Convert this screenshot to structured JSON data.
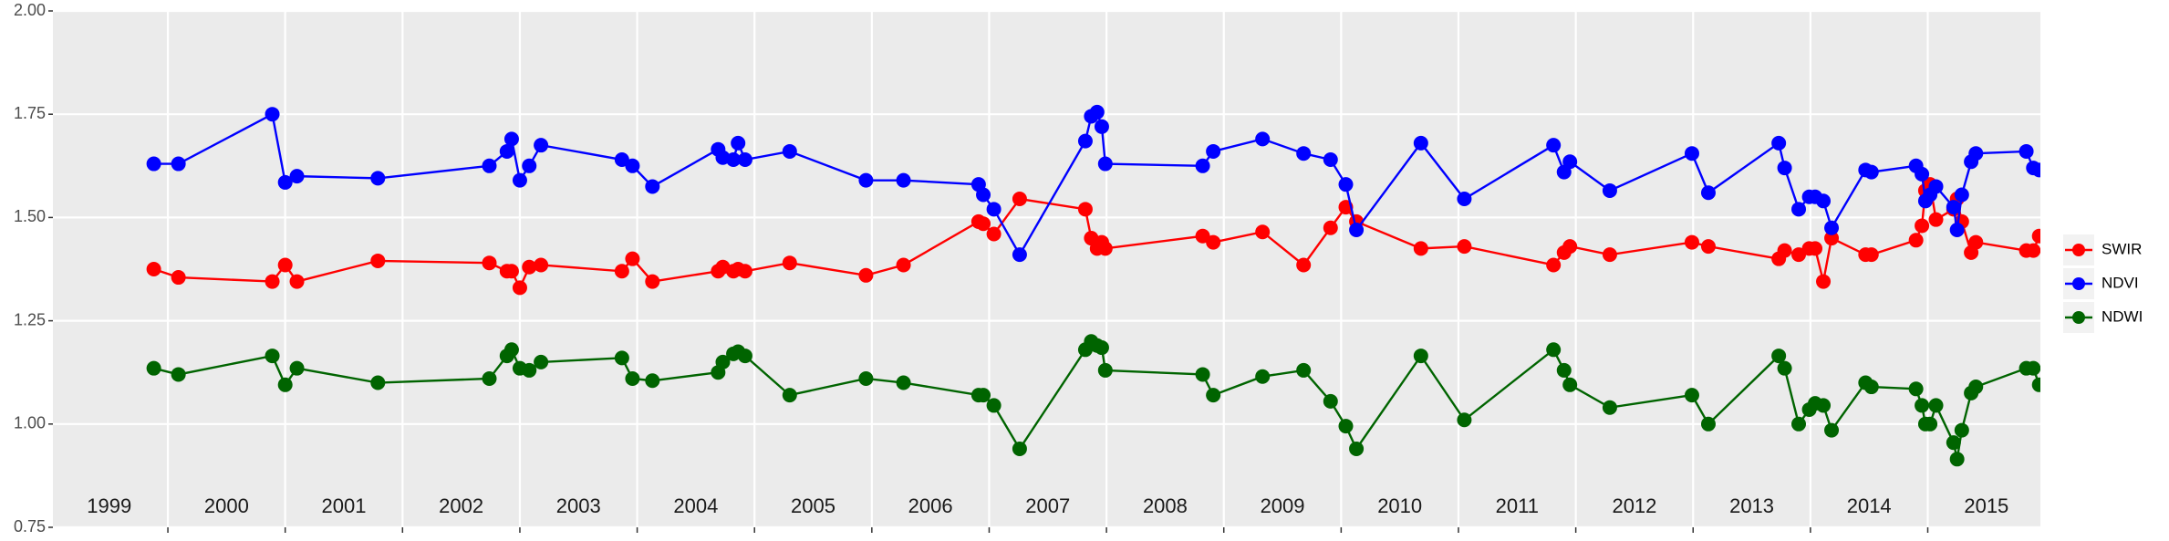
{
  "chart_data": {
    "type": "line",
    "x": [
      1999.88,
      2000.09,
      2000.89,
      2001.0,
      2001.1,
      2001.79,
      2002.74,
      2002.89,
      2002.93,
      2003.0,
      2003.08,
      2003.18,
      2003.87,
      2003.96,
      2004.13,
      2004.69,
      2004.73,
      2004.82,
      2004.86,
      2004.92,
      2005.3,
      2005.95,
      2006.27,
      2006.91,
      2006.95,
      2007.04,
      2007.26,
      2007.82,
      2007.87,
      2007.92,
      2007.96,
      2007.99,
      2008.82,
      2008.91,
      2009.33,
      2009.68,
      2009.91,
      2010.04,
      2010.13,
      2010.68,
      2011.05,
      2011.81,
      2011.9,
      2011.95,
      2012.29,
      2012.99,
      2013.13,
      2013.73,
      2013.78,
      2013.9,
      2013.99,
      2014.04,
      2014.11,
      2014.18,
      2014.47,
      2014.52,
      2014.9,
      2014.95,
      2014.98,
      2015.02,
      2015.07,
      2015.22,
      2015.25,
      2015.29,
      2015.37,
      2015.41,
      2015.84,
      2015.9,
      2015.95
    ],
    "series": [
      {
        "name": "SWIR",
        "color": "#ff0000",
        "values": [
          1.375,
          1.355,
          1.345,
          1.385,
          1.345,
          1.395,
          1.39,
          1.37,
          1.37,
          1.33,
          1.38,
          1.385,
          1.37,
          1.4,
          1.345,
          1.37,
          1.38,
          1.37,
          1.375,
          1.37,
          1.39,
          1.36,
          1.385,
          1.49,
          1.485,
          1.46,
          1.545,
          1.52,
          1.45,
          1.425,
          1.44,
          1.425,
          1.455,
          1.44,
          1.465,
          1.385,
          1.475,
          1.525,
          1.49,
          1.425,
          1.43,
          1.385,
          1.415,
          1.43,
          1.41,
          1.44,
          1.43,
          1.4,
          1.42,
          1.41,
          1.425,
          1.425,
          1.345,
          1.45,
          1.41,
          1.41,
          1.445,
          1.48,
          1.565,
          1.58,
          1.495,
          1.52,
          1.545,
          1.49,
          1.415,
          1.44,
          1.42,
          1.42,
          1.455
        ]
      },
      {
        "name": "NDVI",
        "color": "#0000ff",
        "values": [
          1.63,
          1.63,
          1.75,
          1.585,
          1.6,
          1.595,
          1.625,
          1.66,
          1.69,
          1.59,
          1.625,
          1.675,
          1.64,
          1.625,
          1.575,
          1.665,
          1.645,
          1.64,
          1.68,
          1.64,
          1.66,
          1.59,
          1.59,
          1.58,
          1.555,
          1.52,
          1.41,
          1.685,
          1.745,
          1.755,
          1.72,
          1.63,
          1.625,
          1.66,
          1.69,
          1.655,
          1.64,
          1.58,
          1.47,
          1.68,
          1.545,
          1.675,
          1.61,
          1.635,
          1.565,
          1.655,
          1.56,
          1.68,
          1.62,
          1.52,
          1.55,
          1.55,
          1.54,
          1.475,
          1.615,
          1.61,
          1.625,
          1.605,
          1.54,
          1.555,
          1.575,
          1.525,
          1.47,
          1.555,
          1.635,
          1.655,
          1.66,
          1.62,
          1.615
        ]
      },
      {
        "name": "NDWI",
        "color": "#006400",
        "values": [
          1.135,
          1.12,
          1.165,
          1.095,
          1.135,
          1.1,
          1.11,
          1.165,
          1.18,
          1.135,
          1.13,
          1.15,
          1.16,
          1.11,
          1.105,
          1.125,
          1.15,
          1.17,
          1.175,
          1.165,
          1.07,
          1.11,
          1.1,
          1.07,
          1.07,
          1.045,
          0.94,
          1.18,
          1.2,
          1.19,
          1.185,
          1.13,
          1.12,
          1.07,
          1.115,
          1.13,
          1.055,
          0.995,
          0.94,
          1.165,
          1.01,
          1.18,
          1.13,
          1.095,
          1.04,
          1.07,
          1.0,
          1.165,
          1.135,
          1.0,
          1.035,
          1.05,
          1.045,
          0.985,
          1.1,
          1.09,
          1.085,
          1.045,
          1.0,
          1.0,
          1.045,
          0.955,
          0.915,
          0.985,
          1.075,
          1.09,
          1.135,
          1.135,
          1.095
        ]
      }
    ],
    "xlim": [
      1999.02,
      2015.96
    ],
    "xgrid": [
      2000,
      2001,
      2002,
      2003,
      2004,
      2005,
      2006,
      2007,
      2008,
      2009,
      2010,
      2011,
      2012,
      2013,
      2014,
      2015
    ],
    "year_labels": [
      {
        "value": 1999.5,
        "label": "1999"
      },
      {
        "value": 2000.5,
        "label": "2000"
      },
      {
        "value": 2001.5,
        "label": "2001"
      },
      {
        "value": 2002.5,
        "label": "2002"
      },
      {
        "value": 2003.5,
        "label": "2003"
      },
      {
        "value": 2004.5,
        "label": "2004"
      },
      {
        "value": 2005.5,
        "label": "2005"
      },
      {
        "value": 2006.5,
        "label": "2006"
      },
      {
        "value": 2007.5,
        "label": "2007"
      },
      {
        "value": 2008.5,
        "label": "2008"
      },
      {
        "value": 2009.5,
        "label": "2009"
      },
      {
        "value": 2010.5,
        "label": "2010"
      },
      {
        "value": 2011.5,
        "label": "2011"
      },
      {
        "value": 2012.5,
        "label": "2012"
      },
      {
        "value": 2013.5,
        "label": "2013"
      },
      {
        "value": 2014.5,
        "label": "2014"
      },
      {
        "value": 2015.5,
        "label": "2015"
      }
    ],
    "ylim": [
      0.75,
      2.0
    ],
    "yticks": [
      {
        "value": 0.75,
        "label": "0.75"
      },
      {
        "value": 1.0,
        "label": "1.00"
      },
      {
        "value": 1.25,
        "label": "1.25"
      },
      {
        "value": 1.5,
        "label": "1.50"
      },
      {
        "value": 1.75,
        "label": "1.75"
      },
      {
        "value": 2.0,
        "label": "2.00"
      }
    ],
    "grid": true
  }
}
